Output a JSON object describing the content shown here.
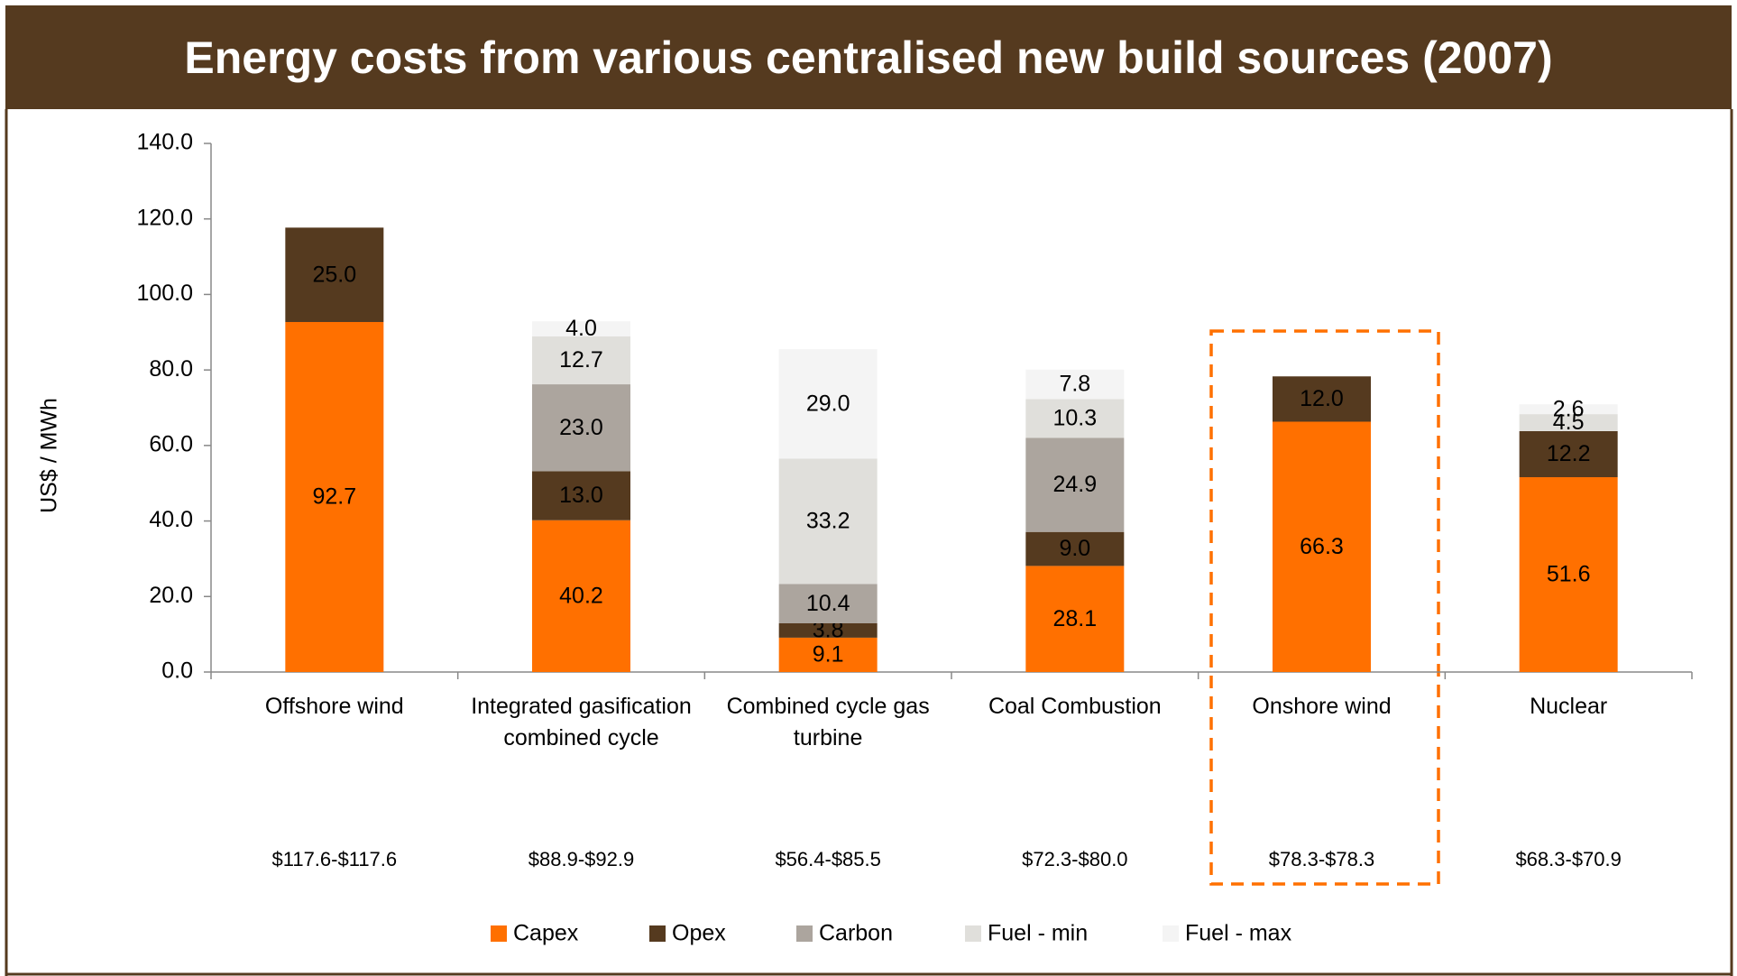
{
  "chart_data": {
    "type": "stacked_bar",
    "title": "Energy costs from various centralised new build sources (2007)",
    "y_label": "US$ / MWh",
    "categories": [
      "Offshore wind",
      "Integrated gasification combined cycle",
      "Combined cycle gas turbine",
      "Coal Combustion",
      "Onshore wind",
      "Nuclear"
    ],
    "cost_ranges": [
      "$117.6-$117.6",
      "$88.9-$92.9",
      "$56.4-$85.5",
      "$72.3-$80.0",
      "$78.3-$78.3",
      "$68.3-$70.9"
    ],
    "series": [
      {
        "name": "Capex",
        "color": "#ff7000",
        "label_color": "#ffffff",
        "values": [
          92.7,
          40.2,
          9.1,
          28.1,
          66.3,
          51.6
        ],
        "value_labels": [
          "92.7",
          "40.2",
          "9.1",
          "28.1",
          "66.3",
          "51.6"
        ]
      },
      {
        "name": "Opex",
        "color": "#553a1f",
        "label_color": "#d9d9d9",
        "values": [
          25,
          13,
          3.8,
          9,
          12,
          12.2
        ],
        "value_labels": [
          "25.0",
          "13.0",
          "3.8",
          "9.0",
          "12.0",
          "12.2"
        ]
      },
      {
        "name": "Carbon",
        "color": "#aca59e",
        "label_color": "#000000",
        "values": [
          null,
          23,
          10.4,
          24.9,
          null,
          null
        ],
        "value_labels": [
          null,
          "23.0",
          "10.4",
          "24.9",
          null,
          null
        ]
      },
      {
        "name": "Fuel - min",
        "color": "#e0dfdb",
        "label_color": "#000000",
        "values": [
          null,
          12.7,
          33.2,
          10.3,
          null,
          4.5
        ],
        "value_labels": [
          null,
          "12.7",
          "33.2",
          "10.3",
          null,
          "4.5"
        ]
      },
      {
        "name": "Fuel - max",
        "color": "#f4f4f4",
        "label_color": "#000000",
        "values": [
          null,
          4,
          29,
          7.8,
          null,
          2.6
        ],
        "value_labels": [
          null,
          "4.0",
          "29.0",
          "7.8",
          null,
          "2.6"
        ]
      }
    ],
    "ylim": [
      0,
      140
    ],
    "yticks": [
      {
        "value": 0,
        "label": "0.0"
      },
      {
        "value": 20,
        "label": "20.0"
      },
      {
        "value": 40,
        "label": "40.0"
      },
      {
        "value": 60,
        "label": "60.0"
      },
      {
        "value": 80,
        "label": "80.0"
      },
      {
        "value": 100,
        "label": "100.0"
      },
      {
        "value": 120,
        "label": "120.0"
      },
      {
        "value": 140,
        "label": "140.0"
      }
    ],
    "grid": false,
    "legend": "bottom"
  }
}
